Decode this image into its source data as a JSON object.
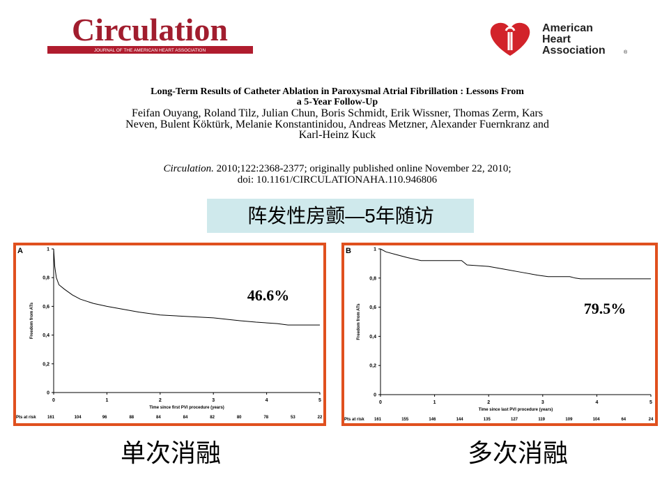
{
  "header": {
    "journal": "Circulation",
    "journal_tagline": "JOURNAL OF THE AMERICAN HEART ASSOCIATION",
    "association_lines": [
      "American",
      "Heart",
      "Association"
    ],
    "registered": "®"
  },
  "article": {
    "title_lines": [
      "Long-Term Results of Catheter Ablation in Paroxysmal Atrial Fibrillation : Lessons From",
      "a 5-Year Follow-Up"
    ],
    "author_lines": [
      "Feifan Ouyang, Roland Tilz, Julian Chun, Boris Schmidt, Erik Wissner, Thomas Zerm, Kars",
      "Neven, Bulent Köktürk, Melanie Konstantinidou, Andreas Metzner, Alexander Fuernkranz and",
      "Karl-Heinz Kuck"
    ],
    "citation_journal": "Circulation.",
    "citation_rest": " 2010;122:2368-2377; originally published online November 22, 2010;",
    "doi": "doi: 10.1161/CIRCULATIONAHA.110.946806"
  },
  "banner": "阵发性房颤—5年随访",
  "panels": [
    {
      "letter": "A",
      "y_label": "Freedom from ATs",
      "x_label": "Time since first PVI procedure (years)",
      "xlim": [
        0,
        5
      ],
      "ylim": [
        0,
        1
      ],
      "xticks": [
        0,
        1,
        2,
        3,
        4,
        5
      ],
      "yticks": [
        0,
        {
          "value": 0.2,
          "label": "0,2"
        },
        {
          "value": 0.4,
          "label": "0,4"
        },
        {
          "value": 0.6,
          "label": "0,6"
        },
        {
          "value": 0.8,
          "label": "0,8"
        },
        1
      ],
      "curve": {
        "x": [
          0,
          0.02,
          0.05,
          0.1,
          0.2,
          0.35,
          0.5,
          0.75,
          1.0,
          1.3,
          1.6,
          2.0,
          2.5,
          3.0,
          3.5,
          3.8,
          4.2,
          4.4,
          5.0
        ],
        "y": [
          1,
          0.88,
          0.8,
          0.75,
          0.72,
          0.68,
          0.65,
          0.62,
          0.6,
          0.58,
          0.56,
          0.54,
          0.53,
          0.52,
          0.5,
          0.49,
          0.48,
          0.47,
          0.47
        ]
      },
      "annotation": "46.6%",
      "at_risk_label": "Pts at risk",
      "at_risk": [
        161,
        104,
        96,
        88,
        84,
        84,
        82,
        80,
        78,
        53,
        22
      ]
    },
    {
      "letter": "B",
      "y_label": "Freedom from ATs",
      "x_label": "Time since last PVI procedure (years)",
      "xlim": [
        0,
        5
      ],
      "ylim": [
        0,
        1
      ],
      "xticks": [
        0,
        1,
        2,
        3,
        4,
        5
      ],
      "yticks": [
        0,
        {
          "value": 0.2,
          "label": "0,2"
        },
        {
          "value": 0.4,
          "label": "0,4"
        },
        {
          "value": 0.6,
          "label": "0,6"
        },
        {
          "value": 0.8,
          "label": "0,8"
        },
        1
      ],
      "curve": {
        "x": [
          0,
          0.1,
          0.3,
          0.5,
          0.75,
          1.5,
          1.6,
          2.0,
          2.3,
          2.6,
          2.9,
          3.1,
          3.5,
          3.6,
          3.7,
          5.0
        ],
        "y": [
          1,
          0.98,
          0.96,
          0.94,
          0.92,
          0.92,
          0.89,
          0.88,
          0.86,
          0.84,
          0.82,
          0.81,
          0.81,
          0.8,
          0.795,
          0.795
        ]
      },
      "annotation": "79.5%",
      "at_risk_label": "Pts at risk",
      "at_risk": [
        161,
        155,
        146,
        144,
        135,
        127,
        119,
        109,
        104,
        64,
        24
      ]
    }
  ],
  "captions": [
    "单次消融",
    "多次消融"
  ]
}
